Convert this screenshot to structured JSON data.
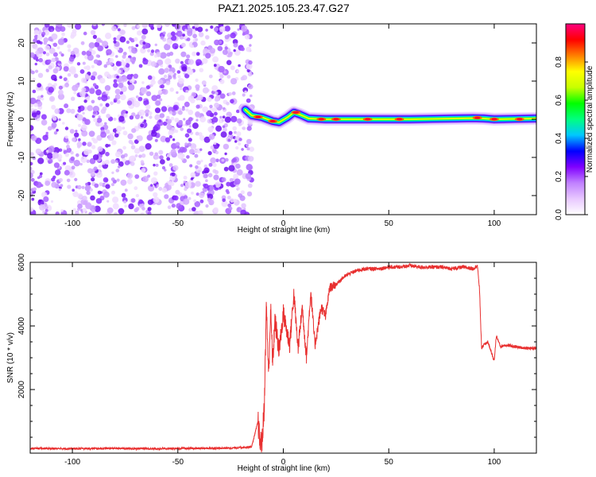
{
  "title": "PAZ1.2025.105.23.47.G27",
  "chart_data": [
    {
      "type": "heatmap",
      "xlabel": "Height of straight line (km)",
      "ylabel": "Frequency (Hz)",
      "xlim": [
        -120,
        120
      ],
      "ylim": [
        -25,
        25
      ],
      "xticks": [
        -100,
        -50,
        0,
        50,
        100
      ],
      "yticks": [
        -20,
        -10,
        0,
        10,
        20
      ],
      "noise_region_x": [
        -120,
        -17
      ],
      "signal_centerline": [
        {
          "x": -18,
          "y": 2.5
        },
        {
          "x": -15,
          "y": 1.0
        },
        {
          "x": -10,
          "y": 0.5
        },
        {
          "x": -5,
          "y": -0.5
        },
        {
          "x": -2,
          "y": -0.8
        },
        {
          "x": 2,
          "y": 0.5
        },
        {
          "x": 5,
          "y": 1.8
        },
        {
          "x": 8,
          "y": 1.2
        },
        {
          "x": 12,
          "y": 0.2
        },
        {
          "x": 20,
          "y": 0.0
        },
        {
          "x": 60,
          "y": 0.0
        },
        {
          "x": 90,
          "y": 0.3
        },
        {
          "x": 95,
          "y": 0.2
        },
        {
          "x": 100,
          "y": 0.0
        },
        {
          "x": 120,
          "y": 0.2
        }
      ],
      "hotspots": [
        {
          "x": -12,
          "y": 0.6
        },
        {
          "x": -5,
          "y": -0.5
        },
        {
          "x": 6,
          "y": 1.8
        },
        {
          "x": 18,
          "y": 0.0
        },
        {
          "x": 25,
          "y": 0.0
        },
        {
          "x": 40,
          "y": 0.0
        },
        {
          "x": 55,
          "y": 0.0
        },
        {
          "x": 92,
          "y": 0.4
        },
        {
          "x": 100,
          "y": 0.0
        },
        {
          "x": 112,
          "y": 0.0
        }
      ]
    },
    {
      "type": "colorbar",
      "label": "Normalized spectral amplitude",
      "range": [
        0,
        1
      ],
      "ticks": [
        "0.0",
        "0.2",
        "0.4",
        "0.6",
        "0.8"
      ],
      "colors": [
        "#ffffff",
        "#e8c8ff",
        "#c080ff",
        "#8000ff",
        "#0000ff",
        "#00c8ff",
        "#00ff80",
        "#00ff00",
        "#c8ff00",
        "#ffff00",
        "#ff8000",
        "#ff0000",
        "#ff0080"
      ]
    },
    {
      "type": "line",
      "xlabel": "Height of straight line (km)",
      "ylabel": "SNR (10 * v/v)",
      "xlim": [
        -120,
        120
      ],
      "ylim": [
        0,
        6000
      ],
      "xticks": [
        -100,
        -50,
        0,
        50,
        100
      ],
      "yticks": [
        2000,
        4000,
        6000
      ],
      "color": "#e83030",
      "x": [
        -120,
        -100,
        -80,
        -60,
        -40,
        -25,
        -15,
        -12,
        -11,
        -10,
        -9,
        -8,
        -7,
        -6,
        -5,
        -4,
        -2,
        0,
        3,
        5,
        7,
        9,
        11,
        13,
        15,
        18,
        20,
        22,
        25,
        28,
        30,
        35,
        40,
        45,
        50,
        55,
        60,
        65,
        70,
        75,
        80,
        85,
        90,
        92,
        93,
        94,
        95,
        97,
        99,
        100,
        101,
        103,
        105,
        110,
        115,
        120
      ],
      "y": [
        150,
        140,
        150,
        140,
        150,
        160,
        200,
        1000,
        300,
        400,
        1500,
        4700,
        2400,
        4500,
        2800,
        4200,
        3200,
        4400,
        3400,
        5000,
        3300,
        4600,
        3000,
        5100,
        3400,
        4600,
        4300,
        5200,
        5300,
        5500,
        5600,
        5750,
        5800,
        5800,
        5850,
        5850,
        5900,
        5850,
        5850,
        5850,
        5800,
        5850,
        5800,
        5900,
        5200,
        3300,
        3400,
        3500,
        3100,
        2900,
        3700,
        3350,
        3400,
        3350,
        3300,
        3300
      ]
    }
  ]
}
